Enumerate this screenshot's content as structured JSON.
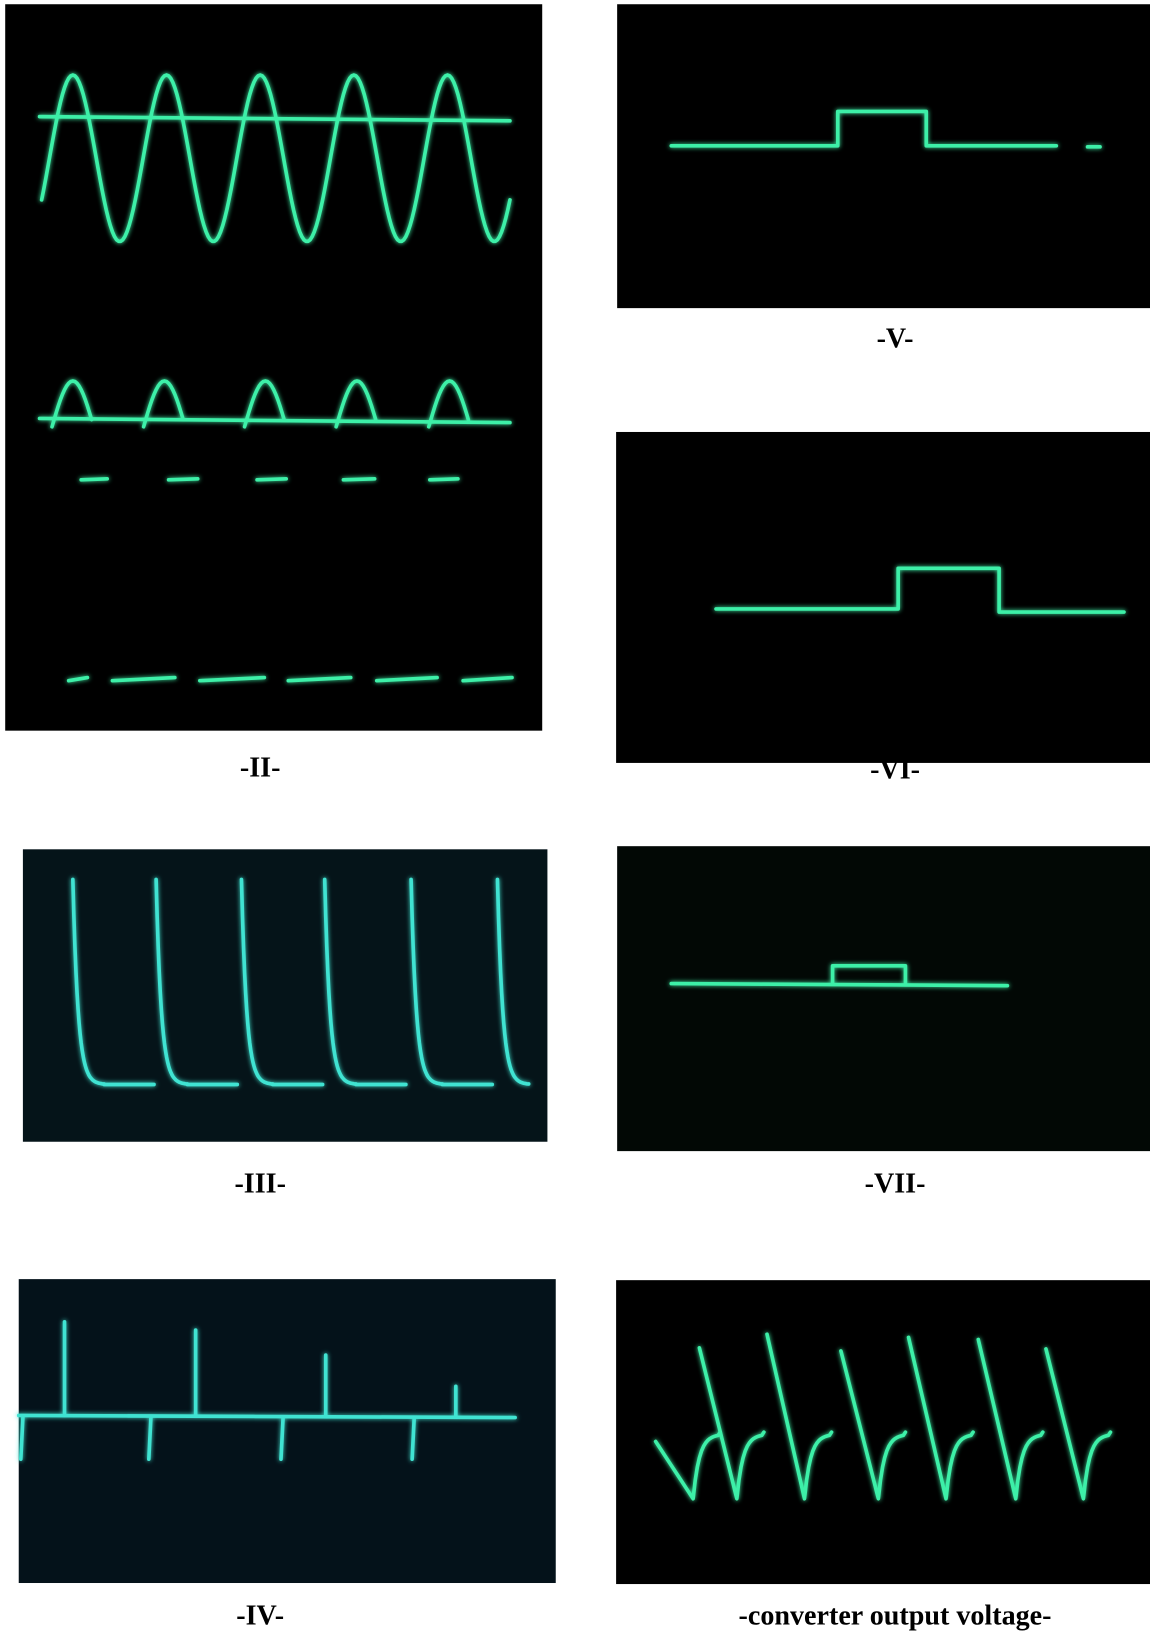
{
  "figures": [
    {
      "caption": "-II-"
    },
    {
      "caption": "-V-"
    },
    {
      "caption": "-VI-"
    },
    {
      "caption": "-III-"
    },
    {
      "caption": "-VII-"
    },
    {
      "caption": "-IV-"
    },
    {
      "caption": "-converter output voltage-"
    }
  ]
}
